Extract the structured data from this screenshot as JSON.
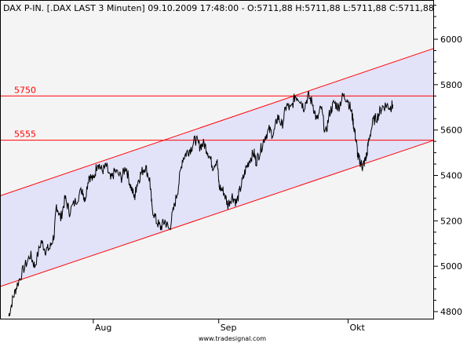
{
  "header": {
    "title": "DAX P-IN. [.DAX LAST 3 Minuten] 09.10.2009 17:48:00 - O:5711,88 H:5711,88 L:5711,88 C:5711,88"
  },
  "footer": {
    "watermark": "www.tradesignal.com"
  },
  "chart_data": {
    "type": "line",
    "title": "DAX P-IN. [.DAX LAST 3 Minuten] 09.10.2009 17:48:00 - O:5711,88 H:5711,88 L:5711,88 C:5711,88",
    "xlabel": "",
    "ylabel": "",
    "ylim": [
      4750,
      6150
    ],
    "y_ticks": [
      4800,
      5000,
      5200,
      5400,
      5600,
      5800,
      6000
    ],
    "x_ticks": [
      {
        "label": "Aug",
        "t": 0.215
      },
      {
        "label": "Sep",
        "t": 0.504
      },
      {
        "label": "Okt",
        "t": 0.802
      }
    ],
    "horizontal_lines": [
      {
        "label": "5750",
        "value": 5750,
        "color": "#ff0000"
      },
      {
        "label": "5555",
        "value": 5555,
        "color": "#ff0000"
      }
    ],
    "channel": {
      "upper": {
        "start": 5310,
        "end": 5960
      },
      "lower": {
        "start": 4910,
        "end": 5555
      },
      "fill": "#e2e2f9",
      "line_color": "#ff0000"
    },
    "series": [
      {
        "color": "#000000",
        "points": [
          [
            0.02,
            4780
          ],
          [
            0.03,
            4860
          ],
          [
            0.04,
            4920
          ],
          [
            0.055,
            4990
          ],
          [
            0.07,
            5050
          ],
          [
            0.08,
            5000
          ],
          [
            0.095,
            5110
          ],
          [
            0.105,
            5070
          ],
          [
            0.115,
            5080
          ],
          [
            0.125,
            5140
          ],
          [
            0.13,
            5270
          ],
          [
            0.14,
            5210
          ],
          [
            0.15,
            5300
          ],
          [
            0.16,
            5240
          ],
          [
            0.175,
            5290
          ],
          [
            0.19,
            5340
          ],
          [
            0.195,
            5290
          ],
          [
            0.205,
            5400
          ],
          [
            0.215,
            5380
          ],
          [
            0.225,
            5460
          ],
          [
            0.235,
            5420
          ],
          [
            0.245,
            5440
          ],
          [
            0.255,
            5380
          ],
          [
            0.265,
            5420
          ],
          [
            0.28,
            5390
          ],
          [
            0.29,
            5440
          ],
          [
            0.3,
            5360
          ],
          [
            0.31,
            5300
          ],
          [
            0.315,
            5360
          ],
          [
            0.325,
            5410
          ],
          [
            0.335,
            5440
          ],
          [
            0.345,
            5380
          ],
          [
            0.35,
            5260
          ],
          [
            0.36,
            5200
          ],
          [
            0.37,
            5170
          ],
          [
            0.38,
            5200
          ],
          [
            0.39,
            5160
          ],
          [
            0.4,
            5250
          ],
          [
            0.41,
            5340
          ],
          [
            0.42,
            5470
          ],
          [
            0.43,
            5500
          ],
          [
            0.44,
            5520
          ],
          [
            0.45,
            5560
          ],
          [
            0.46,
            5530
          ],
          [
            0.47,
            5540
          ],
          [
            0.48,
            5500
          ],
          [
            0.49,
            5440
          ],
          [
            0.5,
            5470
          ],
          [
            0.505,
            5350
          ],
          [
            0.515,
            5330
          ],
          [
            0.525,
            5270
          ],
          [
            0.535,
            5310
          ],
          [
            0.545,
            5280
          ],
          [
            0.555,
            5350
          ],
          [
            0.565,
            5420
          ],
          [
            0.575,
            5470
          ],
          [
            0.585,
            5500
          ],
          [
            0.59,
            5460
          ],
          [
            0.6,
            5510
          ],
          [
            0.61,
            5570
          ],
          [
            0.62,
            5600
          ],
          [
            0.63,
            5580
          ],
          [
            0.64,
            5660
          ],
          [
            0.65,
            5620
          ],
          [
            0.66,
            5710
          ],
          [
            0.67,
            5690
          ],
          [
            0.68,
            5750
          ],
          [
            0.69,
            5740
          ],
          [
            0.7,
            5700
          ],
          [
            0.71,
            5750
          ],
          [
            0.72,
            5720
          ],
          [
            0.73,
            5640
          ],
          [
            0.74,
            5700
          ],
          [
            0.75,
            5580
          ],
          [
            0.76,
            5680
          ],
          [
            0.77,
            5720
          ],
          [
            0.78,
            5700
          ],
          [
            0.79,
            5750
          ],
          [
            0.8,
            5740
          ],
          [
            0.81,
            5680
          ],
          [
            0.815,
            5620
          ],
          [
            0.82,
            5560
          ],
          [
            0.825,
            5480
          ],
          [
            0.83,
            5460
          ],
          [
            0.835,
            5440
          ],
          [
            0.84,
            5460
          ],
          [
            0.845,
            5490
          ],
          [
            0.85,
            5560
          ],
          [
            0.86,
            5640
          ],
          [
            0.87,
            5660
          ],
          [
            0.88,
            5700
          ],
          [
            0.89,
            5710
          ],
          [
            0.9,
            5700
          ],
          [
            0.905,
            5711.88
          ]
        ]
      }
    ]
  }
}
